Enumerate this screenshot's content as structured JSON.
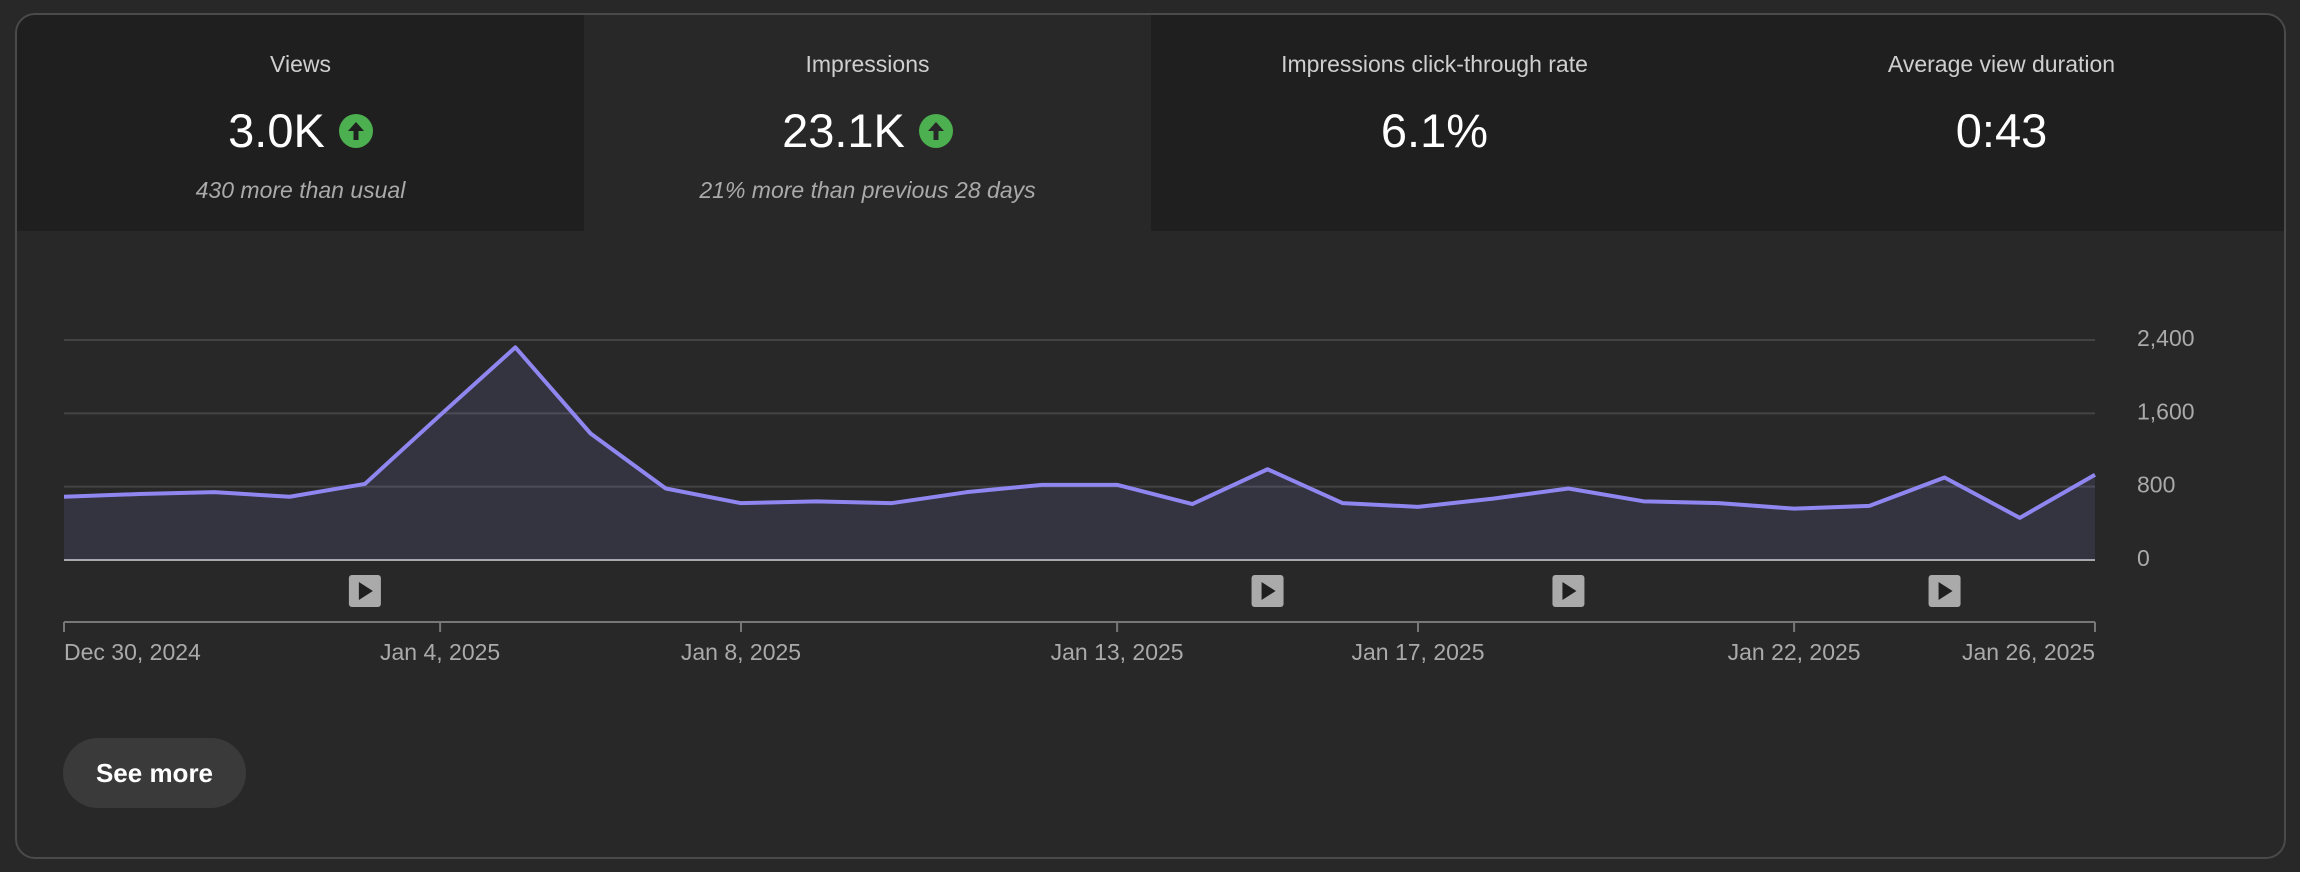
{
  "tabs": [
    {
      "label": "Views",
      "value": "3.0K",
      "note": "430 more than usual"
    },
    {
      "label": "Impressions",
      "value": "23.1K",
      "note": "21% more than previous 28 days"
    },
    {
      "label": "Impressions click-through rate",
      "value": "6.1%"
    },
    {
      "label": "Average view duration",
      "value": "0:43"
    }
  ],
  "chart_data": {
    "type": "line",
    "categories": [
      "Dec 30, 2024",
      null,
      null,
      null,
      null,
      "Jan 4, 2025",
      null,
      null,
      null,
      "Jan 8, 2025",
      null,
      null,
      null,
      null,
      "Jan 13, 2025",
      null,
      null,
      null,
      "Jan 17, 2025",
      null,
      null,
      null,
      null,
      "Jan 22, 2025",
      null,
      null,
      null,
      "Jan 26, 2025"
    ],
    "values": [
      690,
      720,
      740,
      690,
      830,
      1580,
      2320,
      1380,
      780,
      620,
      640,
      620,
      740,
      820,
      820,
      610,
      990,
      620,
      580,
      670,
      780,
      640,
      620,
      560,
      590,
      900,
      460,
      930
    ],
    "color": "#8f86f0",
    "ylim": [
      0,
      2400
    ],
    "yticks": [
      0,
      800,
      {
        "value": 1600,
        "label": "1,600"
      },
      {
        "value": 2400,
        "label": "2,400"
      }
    ],
    "grid": true
  },
  "button": "See more"
}
